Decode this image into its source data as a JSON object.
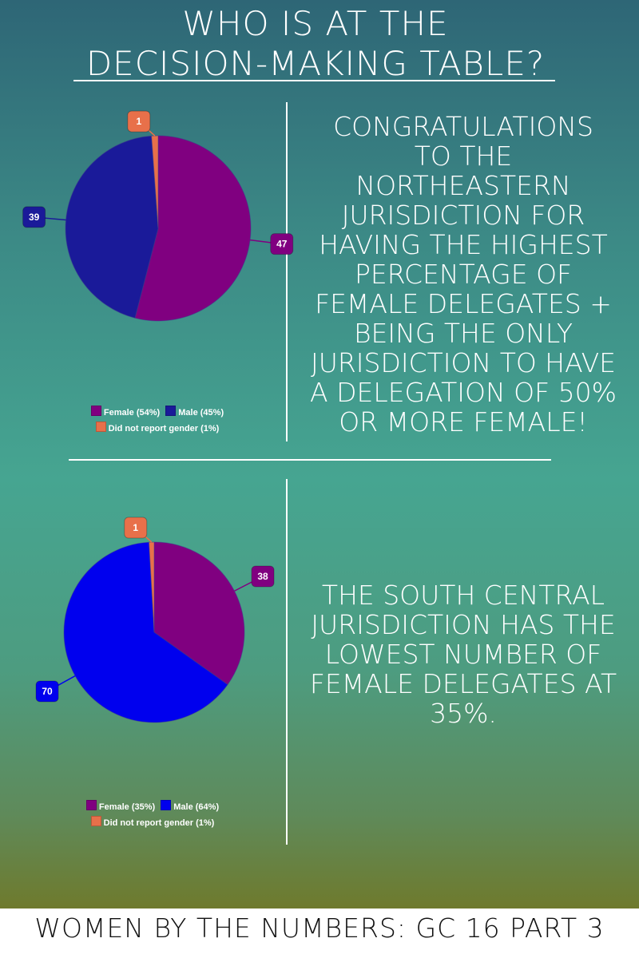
{
  "header": {
    "line1": "WHO IS AT THE",
    "line2": "DECISION-MAKING TABLE?"
  },
  "colors": {
    "female_1": "#800080",
    "male_1": "#1a1a99",
    "female_2": "#800080",
    "male_2": "#0000ee",
    "other": "#e8704a"
  },
  "chart_data": [
    {
      "type": "pie",
      "categories": [
        "Female",
        "Male",
        "Did not report gender"
      ],
      "values": [
        47,
        39,
        1
      ],
      "data_labels": [
        "47",
        "39",
        "1"
      ],
      "legend": [
        "Female (54%)",
        "Male (45%)",
        "Did not report gender (1%)"
      ],
      "legend_placement": "bottom"
    },
    {
      "type": "pie",
      "categories": [
        "Female",
        "Male",
        "Did not report gender"
      ],
      "values": [
        38,
        70,
        1
      ],
      "data_labels": [
        "38",
        "70",
        "1"
      ],
      "legend": [
        "Female (35%)",
        "Male (64%)",
        "Did not report gender (1%)"
      ],
      "legend_placement": "bottom"
    }
  ],
  "messages": {
    "top": [
      "CONGRATULATIONS",
      "TO THE",
      "NORTHEASTERN",
      "JURISDICTION FOR",
      "HAVING THE HIGHEST",
      "PERCENTAGE OF",
      "FEMALE DELEGATES +",
      "BEING THE ONLY",
      "JURISDICTION TO HAVE",
      "A DELEGATION OF 50%",
      "OR MORE FEMALE!"
    ],
    "bottom": [
      "THE SOUTH CENTRAL",
      "JURISDICTION HAS THE",
      "LOWEST NUMBER OF",
      "FEMALE DELEGATES AT",
      "35%."
    ]
  },
  "footer": {
    "text": "WOMEN BY THE NUMBERS: GC 16 PART 3"
  }
}
